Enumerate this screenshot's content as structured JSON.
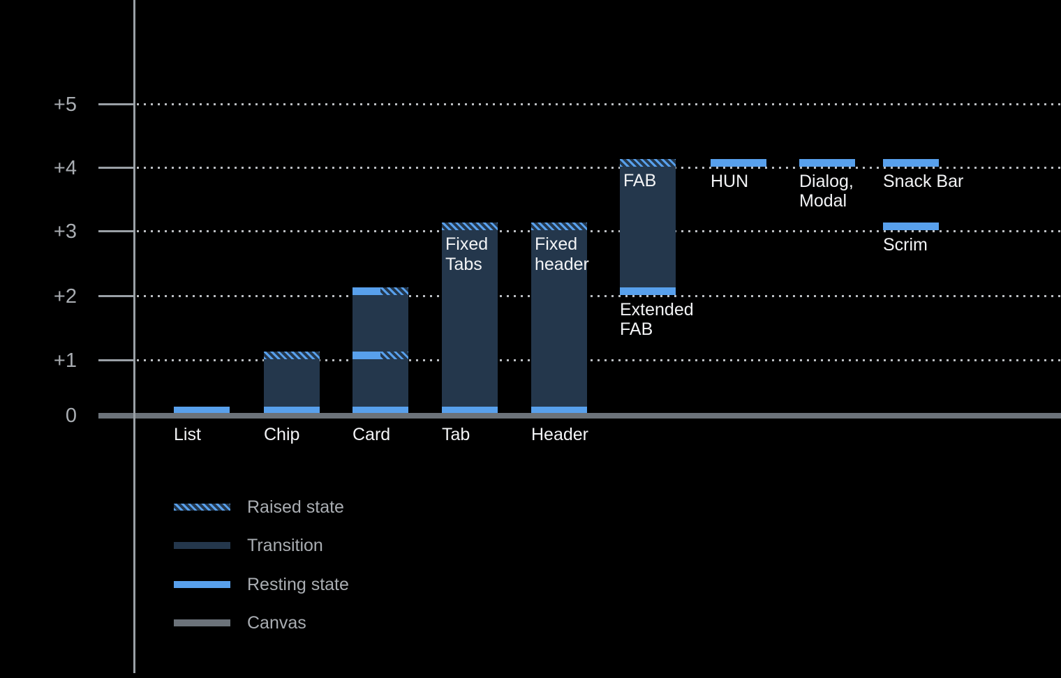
{
  "background_color": "#000000",
  "colors": {
    "resting_blue": "#58A0EC",
    "transition_navy": "#24374C",
    "canvas_gray": "#6C737A",
    "axis_gray": "#9AA0A6",
    "gridline_gray": "#BBBEC2",
    "bright_text": "#F2F3F5",
    "muted_text": "#A9ADB2"
  },
  "chart_data": {
    "type": "bar",
    "title": "",
    "xlabel": "",
    "ylabel": "",
    "ylim": [
      0,
      5
    ],
    "grid": "horizontal-dotted",
    "legend_position": "bottom-left",
    "y_axis_labels": [
      {
        "text": "+5",
        "value": 5
      },
      {
        "text": "+4",
        "value": 4
      },
      {
        "text": "+3",
        "value": 3
      },
      {
        "text": "+2",
        "value": 2
      },
      {
        "text": "+1",
        "value": 1
      },
      {
        "text": "0",
        "value": 0
      }
    ],
    "bars": [
      {
        "name": "list",
        "col": 0,
        "label_lines": [
          "List"
        ],
        "segments": [
          {
            "type": "resting",
            "from": 0,
            "to": 0.12
          }
        ]
      },
      {
        "name": "chip",
        "col": 1,
        "label_lines": [
          "Chip"
        ],
        "segments": [
          {
            "type": "resting",
            "from": 0,
            "to": 0.12
          },
          {
            "type": "transition",
            "from": 0.12,
            "to": 1
          },
          {
            "type": "raised",
            "from": 1,
            "to": 1.12
          }
        ]
      },
      {
        "name": "card",
        "col": 2,
        "label_lines": [
          "Card"
        ],
        "segments": [
          {
            "type": "resting",
            "from": 0,
            "to": 0.12
          },
          {
            "type": "transition",
            "from": 0.12,
            "to": 1
          },
          {
            "type": "split",
            "from": 1,
            "to": 1.12
          },
          {
            "type": "transition",
            "from": 1.12,
            "to": 2
          },
          {
            "type": "split",
            "from": 2,
            "to": 2.12
          }
        ]
      },
      {
        "name": "tab",
        "col": 3,
        "label_lines": [
          "Tab"
        ],
        "inside_label_lines": [
          "Fixed",
          "Tabs"
        ],
        "segments": [
          {
            "type": "resting",
            "from": 0,
            "to": 0.12
          },
          {
            "type": "transition",
            "from": 0.12,
            "to": 3
          },
          {
            "type": "raised",
            "from": 3,
            "to": 3.12
          }
        ]
      },
      {
        "name": "header",
        "col": 4,
        "label_lines": [
          "Header"
        ],
        "inside_label_lines": [
          "Fixed",
          "header"
        ],
        "segments": [
          {
            "type": "resting",
            "from": 0,
            "to": 0.12
          },
          {
            "type": "transition",
            "from": 0.12,
            "to": 3
          },
          {
            "type": "raised",
            "from": 3,
            "to": 3.12
          }
        ]
      },
      {
        "name": "fab",
        "col": 5,
        "label_lines": [
          "Extended",
          "FAB"
        ],
        "inside_label_lines": [
          "FAB"
        ],
        "segments": [
          {
            "type": "resting",
            "from": 2,
            "to": 2.12
          },
          {
            "type": "transition",
            "from": 2.12,
            "to": 4
          },
          {
            "type": "raised",
            "from": 4,
            "to": 4.12
          }
        ]
      },
      {
        "name": "hun",
        "col": 6,
        "label_lines": [
          "HUN"
        ],
        "segments": [
          {
            "type": "resting",
            "from": 4,
            "to": 4.12
          }
        ]
      },
      {
        "name": "dialog-modal",
        "col": 7,
        "label_lines": [
          "Dialog,",
          "Modal"
        ],
        "segments": [
          {
            "type": "resting",
            "from": 4,
            "to": 4.12
          }
        ]
      },
      {
        "name": "snack-bar",
        "col": 8,
        "label_lines": [
          "Snack Bar"
        ],
        "segments": [
          {
            "type": "resting",
            "from": 4,
            "to": 4.12
          }
        ]
      },
      {
        "name": "scrim",
        "col": 8,
        "label_lines": [
          "Scrim"
        ],
        "segments": [
          {
            "type": "resting",
            "from": 3,
            "to": 3.12
          }
        ]
      }
    ],
    "legend": [
      {
        "name": "raised",
        "label": "Raised state"
      },
      {
        "name": "transition",
        "label": "Transition"
      },
      {
        "name": "resting",
        "label": "Resting state"
      },
      {
        "name": "canvas",
        "label": "Canvas"
      }
    ]
  }
}
